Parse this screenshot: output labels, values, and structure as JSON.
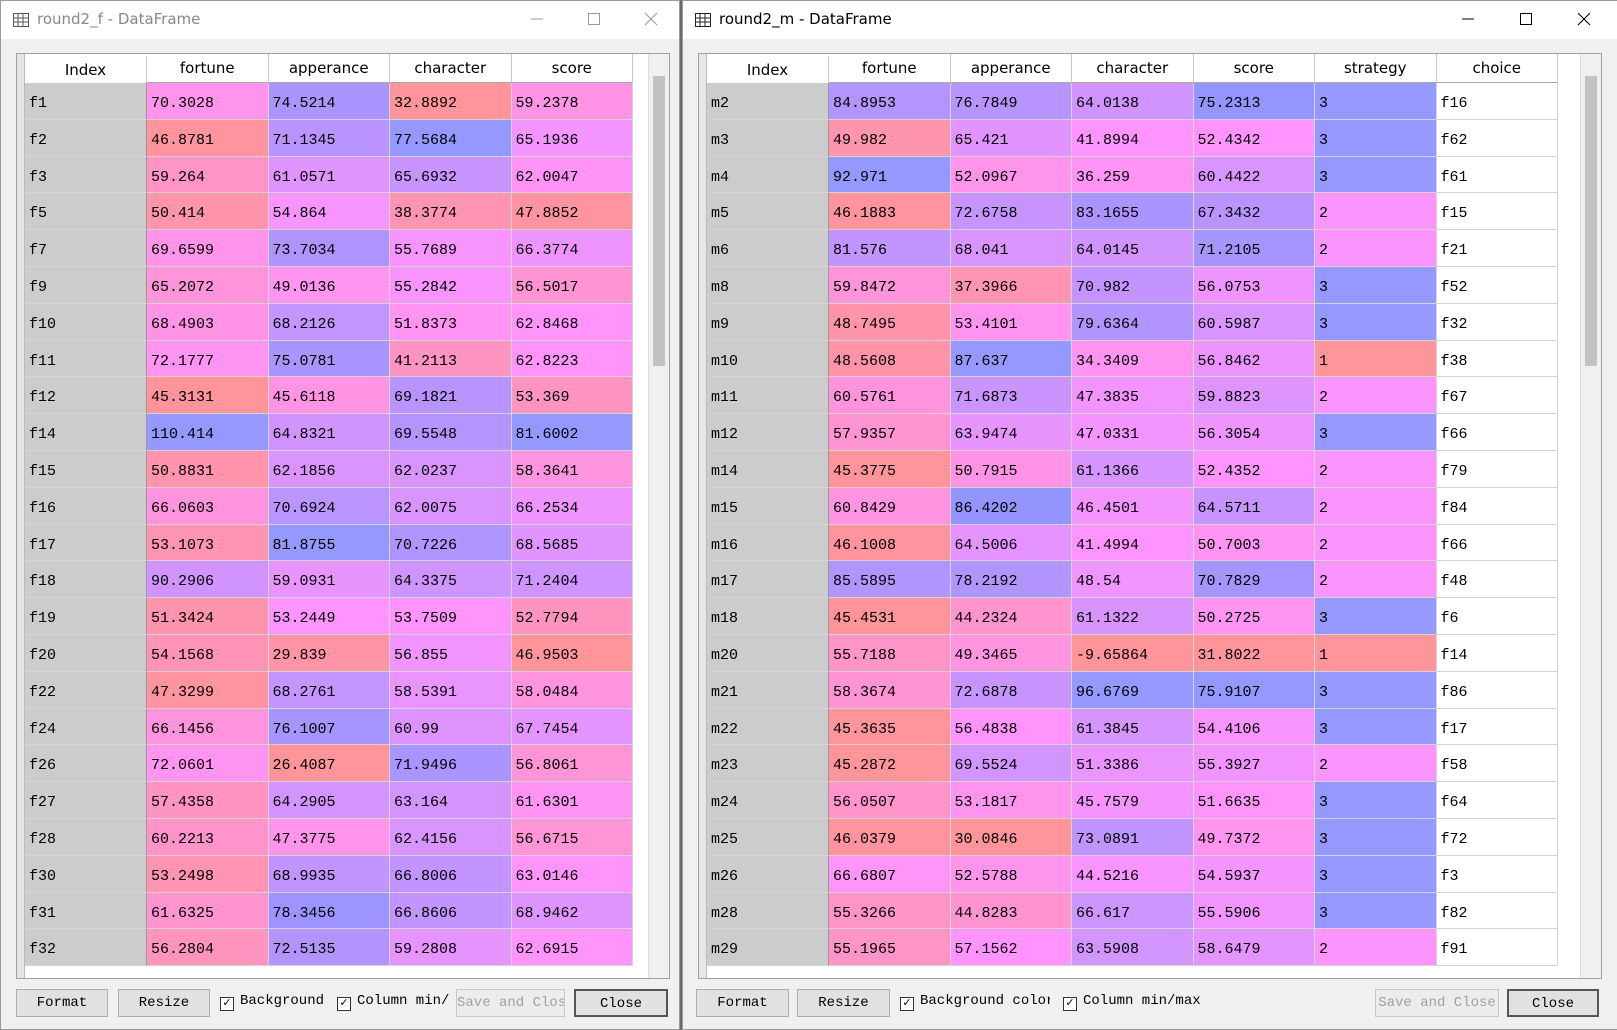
{
  "windows": [
    {
      "title": "round2_f - DataFrame",
      "columns": [
        "Index",
        "fortune",
        "apperance",
        "character",
        "score"
      ],
      "rows": [
        [
          "f1",
          70.3028,
          74.5214,
          32.8892,
          59.2378
        ],
        [
          "f2",
          46.8781,
          71.1345,
          77.5684,
          65.1936
        ],
        [
          "f3",
          59.264,
          61.0571,
          65.6932,
          62.0047
        ],
        [
          "f5",
          50.414,
          54.864,
          38.3774,
          47.8852
        ],
        [
          "f7",
          69.6599,
          73.7034,
          55.7689,
          66.3774
        ],
        [
          "f9",
          65.2072,
          49.0136,
          55.2842,
          56.5017
        ],
        [
          "f10",
          68.4903,
          68.2126,
          51.8373,
          62.8468
        ],
        [
          "f11",
          72.1777,
          75.0781,
          41.2113,
          62.8223
        ],
        [
          "f12",
          45.3131,
          45.6118,
          69.1821,
          53.369
        ],
        [
          "f14",
          110.414,
          64.8321,
          69.5548,
          81.6002
        ],
        [
          "f15",
          50.8831,
          62.1856,
          62.0237,
          58.3641
        ],
        [
          "f16",
          66.0603,
          70.6924,
          62.0075,
          66.2534
        ],
        [
          "f17",
          53.1073,
          81.8755,
          70.7226,
          68.5685
        ],
        [
          "f18",
          90.2906,
          59.0931,
          64.3375,
          71.2404
        ],
        [
          "f19",
          51.3424,
          53.2449,
          53.7509,
          52.7794
        ],
        [
          "f20",
          54.1568,
          29.839,
          56.855,
          46.9503
        ],
        [
          "f22",
          47.3299,
          68.2761,
          58.5391,
          58.0484
        ],
        [
          "f24",
          66.1456,
          76.1007,
          60.99,
          67.7454
        ],
        [
          "f26",
          72.0601,
          26.4087,
          71.9496,
          56.8061
        ],
        [
          "f27",
          57.4358,
          64.2905,
          63.164,
          61.6301
        ],
        [
          "f28",
          60.2213,
          47.3775,
          62.4156,
          56.6715
        ],
        [
          "f30",
          53.2498,
          68.9935,
          66.8006,
          63.0146
        ],
        [
          "f31",
          61.6325,
          78.3456,
          66.8606,
          68.9462
        ],
        [
          "f32",
          56.2804,
          72.5135,
          59.2808,
          62.6915
        ]
      ],
      "buttons": [
        "Format",
        "Resize",
        "Save and Close",
        "Close"
      ],
      "checkboxes": [
        "Background",
        "Column min/"
      ]
    },
    {
      "title": "round2_m - DataFrame",
      "columns": [
        "Index",
        "fortune",
        "apperance",
        "character",
        "score",
        "strategy",
        "choice"
      ],
      "rows": [
        [
          "m2",
          84.8953,
          76.7849,
          64.0138,
          75.2313,
          3,
          "f16"
        ],
        [
          "m3",
          49.982,
          65.421,
          41.8994,
          52.4342,
          3,
          "f62"
        ],
        [
          "m4",
          92.971,
          52.0967,
          36.259,
          60.4422,
          3,
          "f61"
        ],
        [
          "m5",
          46.1883,
          72.6758,
          83.1655,
          67.3432,
          2,
          "f15"
        ],
        [
          "m6",
          81.576,
          68.041,
          64.0145,
          71.2105,
          2,
          "f21"
        ],
        [
          "m8",
          59.8472,
          37.3966,
          70.982,
          56.0753,
          3,
          "f52"
        ],
        [
          "m9",
          48.7495,
          53.4101,
          79.6364,
          60.5987,
          3,
          "f32"
        ],
        [
          "m10",
          48.5608,
          87.637,
          34.3409,
          56.8462,
          1,
          "f38"
        ],
        [
          "m11",
          60.5761,
          71.6873,
          47.3835,
          59.8823,
          2,
          "f67"
        ],
        [
          "m12",
          57.9357,
          63.9474,
          47.0331,
          56.3054,
          3,
          "f66"
        ],
        [
          "m14",
          45.3775,
          50.7915,
          61.1366,
          52.4352,
          2,
          "f79"
        ],
        [
          "m15",
          60.8429,
          86.4202,
          46.4501,
          64.5711,
          2,
          "f84"
        ],
        [
          "m16",
          46.1008,
          64.5006,
          41.4994,
          50.7003,
          2,
          "f66"
        ],
        [
          "m17",
          85.5895,
          78.2192,
          48.54,
          70.7829,
          2,
          "f48"
        ],
        [
          "m18",
          45.4531,
          44.2324,
          61.1322,
          50.2725,
          3,
          "f6"
        ],
        [
          "m20",
          55.7188,
          49.3465,
          -9.65864,
          31.8022,
          1,
          "f14"
        ],
        [
          "m21",
          58.3674,
          72.6878,
          96.6769,
          75.9107,
          3,
          "f86"
        ],
        [
          "m22",
          45.3635,
          56.4838,
          61.3845,
          54.4106,
          3,
          "f17"
        ],
        [
          "m23",
          45.2872,
          69.5524,
          51.3386,
          55.3927,
          2,
          "f58"
        ],
        [
          "m24",
          56.0507,
          53.1817,
          45.7579,
          51.6635,
          3,
          "f64"
        ],
        [
          "m25",
          46.0379,
          30.0846,
          73.0891,
          49.7372,
          3,
          "f72"
        ],
        [
          "m26",
          66.6807,
          52.5788,
          44.5216,
          54.5937,
          3,
          "f3"
        ],
        [
          "m28",
          55.3266,
          44.8283,
          66.617,
          55.5906,
          3,
          "f82"
        ],
        [
          "m29",
          55.1965,
          57.1562,
          63.5908,
          58.6479,
          2,
          "f91"
        ]
      ],
      "buttons": [
        "Format",
        "Resize",
        "Save and Close",
        "Close"
      ],
      "checkboxes": [
        "Background color",
        "Column min/max"
      ]
    }
  ]
}
